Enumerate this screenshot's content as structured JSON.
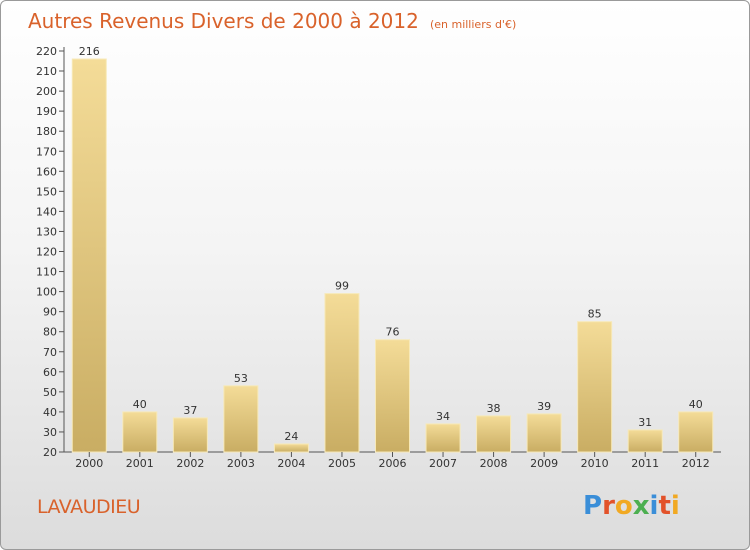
{
  "header": {
    "title": "Autres Revenus Divers de 2000 à 2012",
    "subtitle": "(en milliers d'€)"
  },
  "footer": {
    "place": "LAVAUDIEU",
    "logo": [
      "P",
      "r",
      "o",
      "x",
      "i",
      "t",
      "i"
    ]
  },
  "colors": {
    "title": "#d9622b",
    "bar_light": "#f4dc98",
    "bar_dark": "#c9ad63",
    "logo": [
      "#3a8ed8",
      "#e2522a",
      "#f1a923",
      "#4caf50",
      "#3a8ed8",
      "#e2522a",
      "#f1a923"
    ]
  },
  "chart_data": {
    "type": "bar",
    "categories": [
      "2000",
      "2001",
      "2002",
      "2003",
      "2004",
      "2005",
      "2006",
      "2007",
      "2008",
      "2009",
      "2010",
      "2011",
      "2012"
    ],
    "values": [
      216,
      40,
      37,
      53,
      24,
      99,
      76,
      34,
      38,
      39,
      85,
      31,
      40
    ],
    "title": "Autres Revenus Divers de 2000 à 2012",
    "ylim": [
      20,
      220
    ],
    "yticks": [
      20,
      30,
      40,
      50,
      60,
      70,
      80,
      90,
      100,
      110,
      120,
      130,
      140,
      150,
      160,
      170,
      180,
      190,
      200,
      210,
      220
    ],
    "grid": false,
    "legend": "none"
  }
}
